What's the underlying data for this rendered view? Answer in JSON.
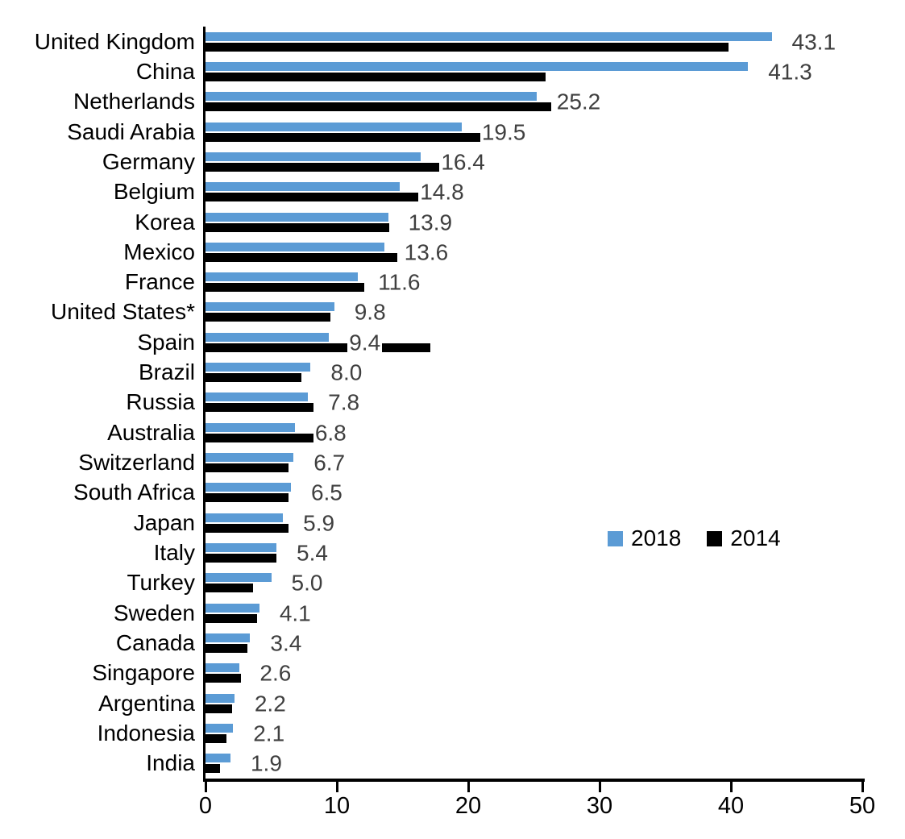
{
  "chart_data": {
    "type": "bar",
    "orientation": "horizontal",
    "title": "",
    "xlabel": "",
    "ylabel": "",
    "xlim": [
      0,
      50
    ],
    "x_ticks": [
      0,
      10,
      20,
      30,
      40,
      50
    ],
    "grid": false,
    "legend_position": "middle-right",
    "categories": [
      "United Kingdom",
      "China",
      "Netherlands",
      "Saudi Arabia",
      "Germany",
      "Belgium",
      "Korea",
      "Mexico",
      "France",
      "United States*",
      "Spain",
      "Brazil",
      "Russia",
      "Australia",
      "Switzerland",
      "South Africa",
      "Japan",
      "Italy",
      "Turkey",
      "Sweden",
      "Canada",
      "Singapore",
      "Argentina",
      "Indonesia",
      "India"
    ],
    "series": [
      {
        "name": "2018",
        "color": "#5B9BD5",
        "values": [
          43.1,
          41.3,
          25.2,
          19.5,
          16.4,
          14.8,
          13.9,
          13.6,
          11.6,
          9.8,
          9.4,
          8.0,
          7.8,
          6.8,
          6.7,
          6.5,
          5.9,
          5.4,
          5.0,
          4.1,
          3.4,
          2.6,
          2.2,
          2.1,
          1.9
        ]
      },
      {
        "name": "2014",
        "color": "#000000",
        "values": [
          39.8,
          25.9,
          26.3,
          21.3,
          17.9,
          17.1,
          14.0,
          14.6,
          12.1,
          9.5,
          17.1,
          7.3,
          8.2,
          9.5,
          6.3,
          6.3,
          6.3,
          5.4,
          3.6,
          3.9,
          3.2,
          2.7,
          2.0,
          1.6,
          1.1
        ]
      }
    ],
    "data_labels": {
      "series": "2018",
      "position": "outside-end",
      "background": "#FFFFFF",
      "color": "#3F3F3F",
      "values": [
        "43.1",
        "41.3",
        "25.2",
        "19.5",
        "16.4",
        "14.8",
        "13.9",
        "13.6",
        "11.6",
        "9.8",
        "9.4",
        "8.0",
        "7.8",
        "6.8",
        "6.7",
        "6.5",
        "5.9",
        "5.4",
        "5.0",
        "4.1",
        "3.4",
        "2.6",
        "2.2",
        "2.1",
        "1.9"
      ]
    }
  },
  "axis": {
    "tick_labels": [
      "0",
      "10",
      "20",
      "30",
      "40",
      "50"
    ]
  },
  "legend": {
    "items": [
      {
        "label": "2018",
        "color": "#5B9BD5"
      },
      {
        "label": "2014",
        "color": "#000000"
      }
    ]
  },
  "colors": {
    "series_2018": "#5B9BD5",
    "series_2014": "#000000",
    "axis": "#000000",
    "category_text": "#000000",
    "value_label_text": "#3F3F3F"
  }
}
